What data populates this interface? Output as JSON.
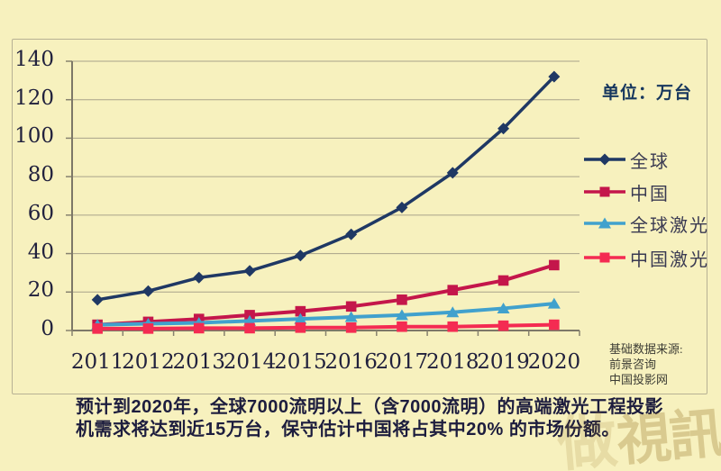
{
  "page": {
    "background": "#F7F1BE"
  },
  "chart": {
    "unit_label": "单位：万台",
    "source_note": {
      "line1": "基础数据来源:",
      "line2": "前景咨询",
      "line3": "中国投影网"
    }
  },
  "caption": {
    "line1": "预计到2020年，全球7000流明以上（含7000流明）的高端激光工程投影",
    "line2": "机需求将达到近15万台，保守估计中国将占其中20% 的市场份额。"
  },
  "watermark": {
    "char": "做",
    "text": "視訊"
  },
  "chart_data": {
    "type": "line",
    "title": "",
    "unit": "万台",
    "categories": [
      "2011",
      "2012",
      "2013",
      "2014",
      "2015",
      "2016",
      "2017",
      "2018",
      "2019",
      "2020"
    ],
    "series": [
      {
        "name": "全球",
        "color": "#1F3864",
        "marker": "diamond",
        "values": [
          16,
          20.5,
          27.5,
          31,
          39,
          50,
          64,
          82,
          105,
          132
        ]
      },
      {
        "name": "中国",
        "color": "#C4164B",
        "marker": "square",
        "values": [
          3,
          4.5,
          6,
          8,
          10,
          12.5,
          16,
          21,
          26,
          34
        ]
      },
      {
        "name": "全球激光",
        "color": "#41A1CD",
        "marker": "triangle",
        "values": [
          3,
          3.5,
          4,
          5,
          6,
          7,
          8,
          9.5,
          11.5,
          14
        ]
      },
      {
        "name": "中国激光",
        "color": "#F42B52",
        "marker": "square",
        "values": [
          1,
          1,
          1.2,
          1.2,
          1.5,
          1.5,
          2,
          2,
          2.5,
          3
        ]
      }
    ],
    "ylim": [
      0,
      140
    ],
    "yticks": [
      0,
      20,
      40,
      60,
      80,
      100,
      120,
      140
    ],
    "grid": true,
    "legend_position": "right"
  }
}
